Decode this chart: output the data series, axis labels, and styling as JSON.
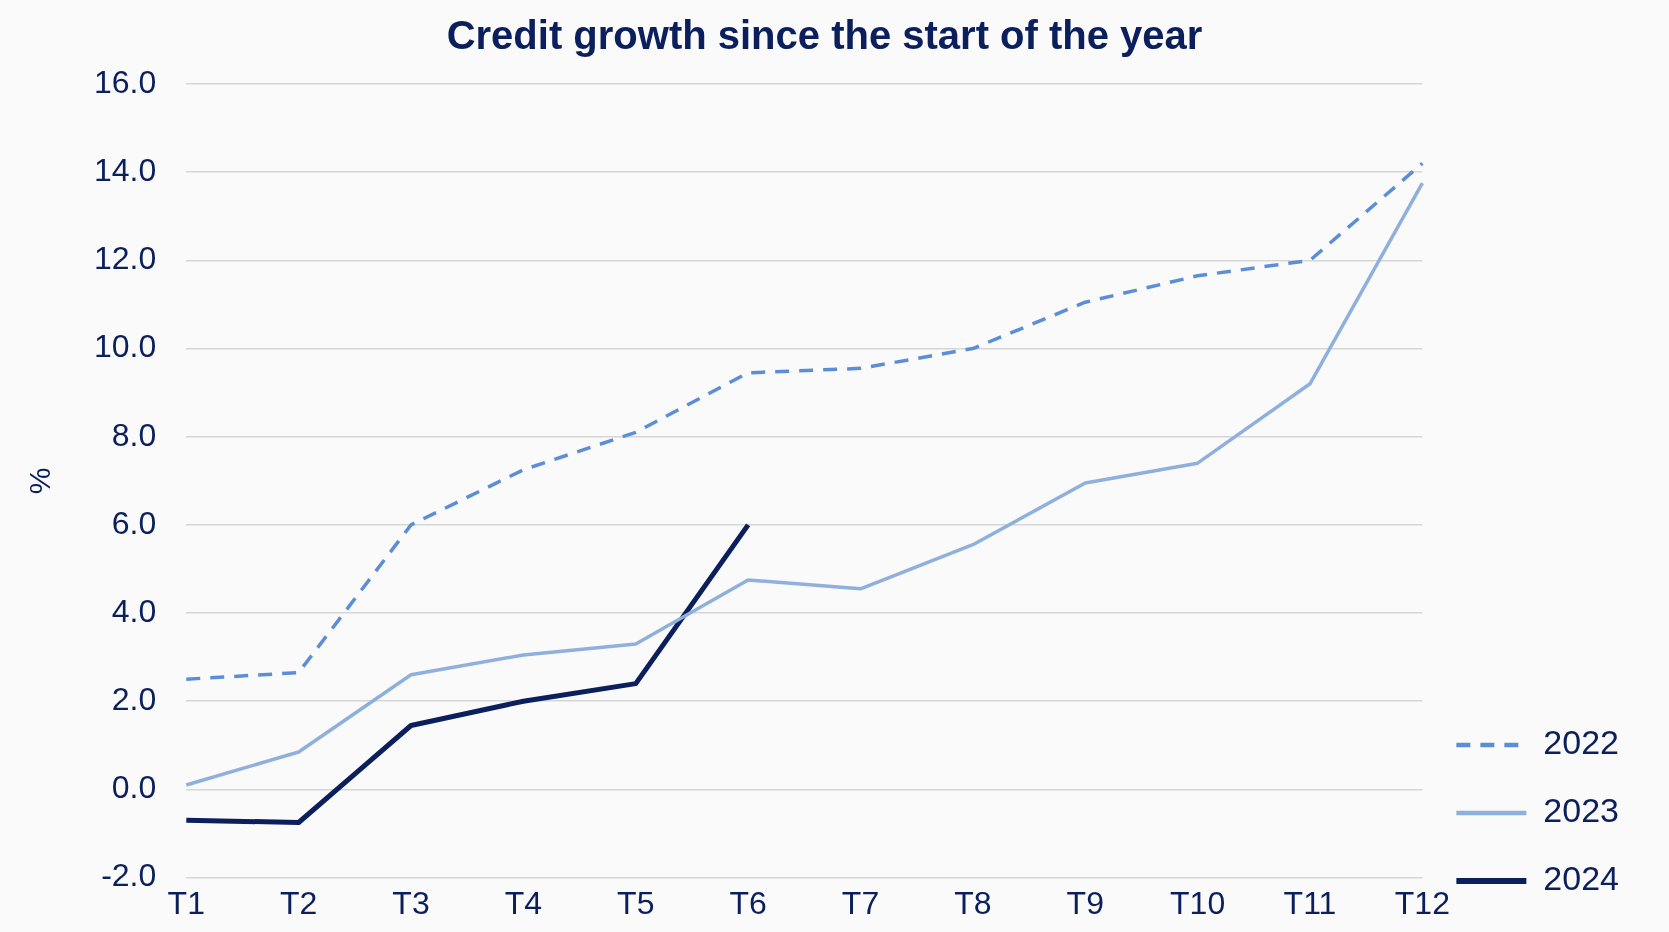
{
  "chart_data": {
    "type": "line",
    "title": "Credit growth since the start of the year",
    "ylabel": "%",
    "categories": [
      "T1",
      "T2",
      "T3",
      "T4",
      "T5",
      "T6",
      "T7",
      "T8",
      "T9",
      "T10",
      "T11",
      "T12"
    ],
    "series": [
      {
        "name": "2022",
        "color": "#5b8ed6",
        "line_style": "dashed",
        "values": [
          2.5,
          2.65,
          6.0,
          7.25,
          8.1,
          9.45,
          9.55,
          10.0,
          11.05,
          11.65,
          12.0,
          14.2
        ]
      },
      {
        "name": "2023",
        "color": "#8fb0dc",
        "line_style": "solid",
        "values": [
          0.1,
          0.85,
          2.6,
          3.05,
          3.3,
          4.75,
          4.55,
          5.55,
          6.95,
          7.4,
          9.2,
          13.75
        ]
      },
      {
        "name": "2024",
        "color": "#0b1f5c",
        "line_style": "solid",
        "values": [
          -0.7,
          -0.75,
          1.45,
          2.0,
          2.4,
          6.0,
          null,
          null,
          null,
          null,
          null,
          null
        ]
      }
    ],
    "ylim": [
      -2,
      16
    ],
    "yticks": [
      {
        "value": -2,
        "label": "-2.0"
      },
      {
        "value": 0,
        "label": "0.0"
      },
      {
        "value": 2,
        "label": "2.0"
      },
      {
        "value": 4,
        "label": "4.0"
      },
      {
        "value": 6,
        "label": "6.0"
      },
      {
        "value": 8,
        "label": "8.0"
      },
      {
        "value": 10,
        "label": "10.0"
      },
      {
        "value": 12,
        "label": "12.0"
      },
      {
        "value": 14,
        "label": "14.0"
      },
      {
        "value": 16,
        "label": "16.0"
      }
    ],
    "grid": "y",
    "legend": "bottom right",
    "marker": "none"
  }
}
